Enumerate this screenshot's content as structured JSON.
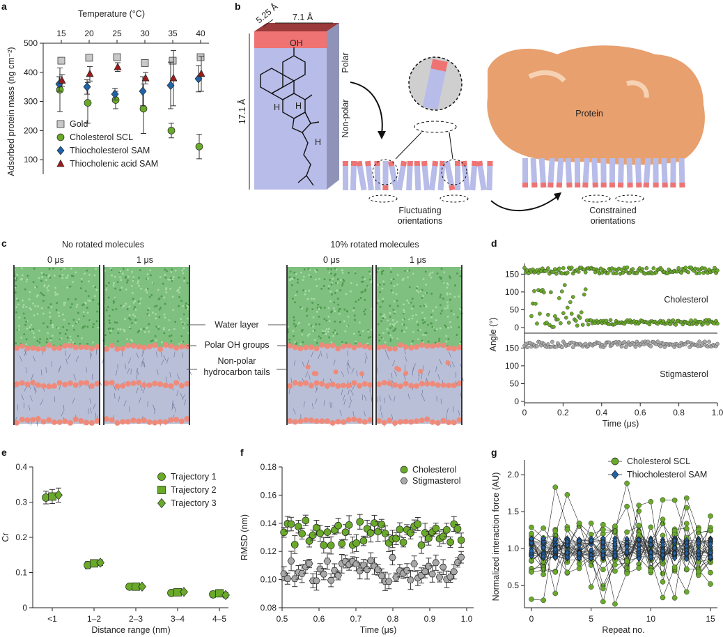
{
  "figure": {
    "panel_labels": [
      "a",
      "b",
      "c",
      "d",
      "e",
      "f",
      "g"
    ]
  },
  "colors": {
    "gold": "#c8c8c8",
    "cholesterol": "#6aaa2a",
    "thiocholesterol": "#1f63a8",
    "thiocholenic": "#9b1c1c",
    "stigmasterol": "#a9a9a9",
    "water": "#7fbf7f",
    "tails": "#b9bfd6",
    "oh": "#ef8a7a",
    "protein": "#e39a66",
    "block": "#b8bce8",
    "polar_cap": "#ef7373"
  },
  "panel_b": {
    "dim_depth": "5.25 Å",
    "dim_width": "7.1 Å",
    "dim_height": "17.1 Å",
    "polar_label": "Polar",
    "nonpolar_label": "Non-polar",
    "oh_label": "OH",
    "h_label": "H",
    "protein_label": "Protein",
    "fluctuating_label_1": "Fluctuating",
    "fluctuating_label_2": "orientations",
    "constrained_label_1": "Constrained",
    "constrained_label_2": "orientations"
  },
  "panel_c": {
    "left_title": "No rotated molecules",
    "right_title": "10% rotated molecules",
    "times": [
      "0 μs",
      "1 μs",
      "0 μs",
      "1 μs"
    ],
    "water_label": "Water layer",
    "oh_label": "Polar OH groups",
    "tails_label_1": "Non-polar",
    "tails_label_2": "hydrocarbon tails"
  },
  "chart_data": [
    {
      "panel": "a",
      "type": "scatter",
      "title": "",
      "xlabel": "Temperature (°C)",
      "ylabel": "Adsorbed protein mass (ng cm⁻²)",
      "x": [
        15,
        20,
        25,
        30,
        35,
        40
      ],
      "xticks": [
        "15",
        "20",
        "25",
        "30",
        "35",
        "40"
      ],
      "ylim": [
        50,
        500
      ],
      "yticks": [
        100,
        200,
        300,
        400,
        500
      ],
      "series": [
        {
          "name": "Gold",
          "marker": "square",
          "values": [
            440,
            450,
            452,
            432,
            440,
            452
          ],
          "err": [
            0,
            0,
            0,
            0,
            0,
            0
          ]
        },
        {
          "name": "Cholesterol SCL",
          "marker": "circle",
          "values": [
            340,
            295,
            305,
            275,
            200,
            145
          ],
          "err": [
            75,
            70,
            30,
            85,
            25,
            42
          ]
        },
        {
          "name": "Thiocholesterol SAM",
          "marker": "diamond",
          "values": [
            360,
            350,
            325,
            335,
            355,
            378
          ],
          "err": [
            25,
            25,
            20,
            50,
            80,
            45
          ]
        },
        {
          "name": "Thiocholenic acid SAM",
          "marker": "triangle",
          "values": [
            372,
            395,
            418,
            380,
            380,
            395
          ],
          "err": [
            20,
            25,
            15,
            20,
            95,
            60
          ]
        }
      ]
    },
    {
      "panel": "d",
      "type": "scatter",
      "xlabel": "Time (μs)",
      "ylabel": "Angle (°)",
      "xlim": [
        0,
        1.0
      ],
      "xticks": [
        "0",
        "0.2",
        "0.4",
        "0.6",
        "0.8",
        "1.0"
      ],
      "yticks_top": [
        "0",
        "50",
        "100",
        "150"
      ],
      "yticks_bottom": [
        "0",
        "50",
        "100",
        "150"
      ],
      "series": [
        {
          "name": "Cholesterol",
          "high_angle": 160,
          "low_angle": 15,
          "switch_time": 0.32
        },
        {
          "name": "Stigmasterol",
          "mean_angle": 160
        }
      ]
    },
    {
      "panel": "e",
      "type": "scatter",
      "xlabel": "Distance range (nm)",
      "ylabel": "Cr",
      "categories": [
        "<1",
        "1–2",
        "2–3",
        "3–4",
        "4–5"
      ],
      "ylim": [
        0,
        0.4
      ],
      "yticks": [
        "0",
        "0.1",
        "0.2",
        "0.3",
        "0.4"
      ],
      "series": [
        {
          "name": "Trajectory 1",
          "marker": "circle",
          "values": [
            0.313,
            0.121,
            0.06,
            0.042,
            0.038
          ],
          "err": [
            0.018,
            0.01,
            0.003,
            0.004,
            0.008
          ]
        },
        {
          "name": "Trajectory 2",
          "marker": "square",
          "values": [
            0.316,
            0.126,
            0.06,
            0.044,
            0.041
          ],
          "err": [
            0.02,
            0.01,
            0.003,
            0.004,
            0.008
          ]
        },
        {
          "name": "Trajectory 3",
          "marker": "diamond",
          "values": [
            0.32,
            0.128,
            0.06,
            0.045,
            0.036
          ],
          "err": [
            0.02,
            0.008,
            0.003,
            0.004,
            0.008
          ]
        }
      ]
    },
    {
      "panel": "f",
      "type": "scatter",
      "xlabel": "Time (μs)",
      "ylabel": "RMSD (nm)",
      "xlim": [
        0.5,
        1.0
      ],
      "ylim": [
        0.08,
        0.18
      ],
      "xticks": [
        "0.5",
        "0.6",
        "0.7",
        "0.8",
        "0.9",
        "1.0"
      ],
      "yticks": [
        "0.08",
        "0.10",
        "0.12",
        "0.14",
        "0.16",
        "0.18"
      ],
      "series": [
        {
          "name": "Cholesterol",
          "marker": "circle",
          "mean": 0.133
        },
        {
          "name": "Stigmasterol",
          "marker": "hexagon",
          "mean": 0.107
        }
      ]
    },
    {
      "panel": "g",
      "type": "line",
      "xlabel": "Repeat no.",
      "ylabel": "Normalized interaction force (AU)",
      "xlim": [
        0,
        15
      ],
      "ylim": [
        0.2,
        2.2
      ],
      "xticks": [
        "0",
        "5",
        "10",
        "15"
      ],
      "yticks": [
        "0.5",
        "1.0",
        "1.5",
        "2.0"
      ],
      "series": [
        {
          "name": "Cholesterol SCL",
          "marker": "circle"
        },
        {
          "name": "Thiocholesterol SAM",
          "marker": "diamond"
        }
      ]
    }
  ]
}
